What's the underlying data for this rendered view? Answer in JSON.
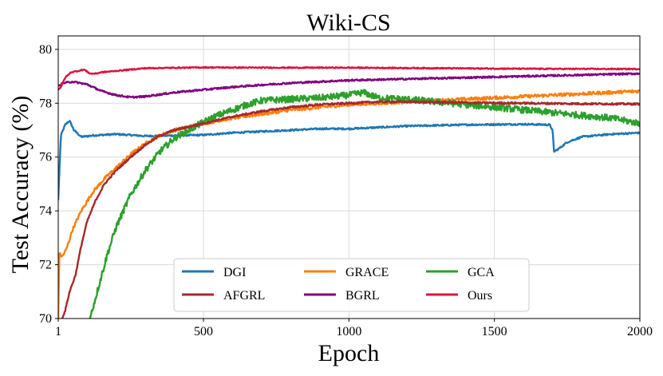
{
  "chart_data": {
    "type": "line",
    "title": "Wiki-CS",
    "xlabel": "Epoch",
    "ylabel": "Test Accuracy (%)",
    "xlim": [
      1,
      2000
    ],
    "ylim": [
      70,
      80.5
    ],
    "xticks": [
      1,
      500,
      1000,
      1500,
      2000
    ],
    "yticks": [
      70,
      72,
      74,
      76,
      78,
      80
    ],
    "grid": true,
    "legend": {
      "placement": "lower-center",
      "columns": 3
    },
    "series": [
      {
        "name": "DGI",
        "color": "#1f77b4",
        "noise": 0.03,
        "points": [
          [
            1,
            74.4
          ],
          [
            10,
            76.8
          ],
          [
            25,
            77.2
          ],
          [
            40,
            77.35
          ],
          [
            55,
            77.0
          ],
          [
            80,
            76.75
          ],
          [
            120,
            76.8
          ],
          [
            200,
            76.85
          ],
          [
            300,
            76.78
          ],
          [
            400,
            76.8
          ],
          [
            500,
            76.82
          ],
          [
            600,
            76.9
          ],
          [
            700,
            76.95
          ],
          [
            800,
            77.0
          ],
          [
            900,
            77.05
          ],
          [
            1000,
            77.05
          ],
          [
            1200,
            77.15
          ],
          [
            1400,
            77.2
          ],
          [
            1600,
            77.22
          ],
          [
            1690,
            77.2
          ],
          [
            1700,
            77.0
          ],
          [
            1705,
            76.2
          ],
          [
            1720,
            76.3
          ],
          [
            1750,
            76.55
          ],
          [
            1800,
            76.75
          ],
          [
            1900,
            76.85
          ],
          [
            2000,
            76.9
          ]
        ]
      },
      {
        "name": "GRACE",
        "color": "#ff7f0e",
        "noise": 0.06,
        "points": [
          [
            1,
            70.0
          ],
          [
            5,
            72.4
          ],
          [
            15,
            72.3
          ],
          [
            30,
            72.6
          ],
          [
            50,
            73.3
          ],
          [
            80,
            74.0
          ],
          [
            120,
            74.7
          ],
          [
            160,
            75.2
          ],
          [
            200,
            75.6
          ],
          [
            250,
            76.1
          ],
          [
            300,
            76.5
          ],
          [
            350,
            76.8
          ],
          [
            400,
            77.0
          ],
          [
            500,
            77.25
          ],
          [
            600,
            77.45
          ],
          [
            700,
            77.6
          ],
          [
            800,
            77.75
          ],
          [
            900,
            77.85
          ],
          [
            1000,
            77.95
          ],
          [
            1200,
            78.05
          ],
          [
            1400,
            78.15
          ],
          [
            1600,
            78.25
          ],
          [
            1800,
            78.35
          ],
          [
            2000,
            78.45
          ]
        ]
      },
      {
        "name": "GCA",
        "color": "#2ca02c",
        "noise": 0.12,
        "points": [
          [
            110,
            70.0
          ],
          [
            140,
            71.2
          ],
          [
            170,
            72.4
          ],
          [
            200,
            73.4
          ],
          [
            250,
            74.6
          ],
          [
            300,
            75.5
          ],
          [
            350,
            76.2
          ],
          [
            400,
            76.7
          ],
          [
            450,
            77.0
          ],
          [
            500,
            77.3
          ],
          [
            550,
            77.55
          ],
          [
            600,
            77.75
          ],
          [
            650,
            77.95
          ],
          [
            700,
            78.1
          ],
          [
            800,
            78.15
          ],
          [
            900,
            78.2
          ],
          [
            1000,
            78.3
          ],
          [
            1050,
            78.4
          ],
          [
            1100,
            78.2
          ],
          [
            1200,
            78.15
          ],
          [
            1300,
            78.05
          ],
          [
            1400,
            77.95
          ],
          [
            1500,
            77.85
          ],
          [
            1600,
            77.75
          ],
          [
            1700,
            77.65
          ],
          [
            1800,
            77.55
          ],
          [
            1900,
            77.45
          ],
          [
            2000,
            77.25
          ]
        ]
      },
      {
        "name": "AFGRL",
        "color": "#a52a2a",
        "noise": 0.035,
        "points": [
          [
            15,
            70.0
          ],
          [
            25,
            70.3
          ],
          [
            40,
            71.0
          ],
          [
            60,
            71.6
          ],
          [
            80,
            72.7
          ],
          [
            100,
            73.6
          ],
          [
            130,
            74.4
          ],
          [
            160,
            75.0
          ],
          [
            200,
            75.5
          ],
          [
            250,
            76.0
          ],
          [
            300,
            76.45
          ],
          [
            350,
            76.8
          ],
          [
            400,
            77.0
          ],
          [
            500,
            77.25
          ],
          [
            600,
            77.5
          ],
          [
            700,
            77.7
          ],
          [
            800,
            77.85
          ],
          [
            900,
            77.95
          ],
          [
            1000,
            78.0
          ],
          [
            1100,
            78.05
          ],
          [
            1200,
            78.05
          ],
          [
            1400,
            78.02
          ],
          [
            1600,
            78.0
          ],
          [
            1800,
            77.98
          ],
          [
            2000,
            77.97
          ]
        ]
      },
      {
        "name": "BGRL",
        "color": "#800080",
        "noise": 0.03,
        "points": [
          [
            1,
            78.65
          ],
          [
            20,
            78.75
          ],
          [
            50,
            78.8
          ],
          [
            100,
            78.7
          ],
          [
            150,
            78.45
          ],
          [
            200,
            78.3
          ],
          [
            250,
            78.22
          ],
          [
            300,
            78.25
          ],
          [
            400,
            78.4
          ],
          [
            500,
            78.5
          ],
          [
            600,
            78.6
          ],
          [
            700,
            78.68
          ],
          [
            800,
            78.75
          ],
          [
            900,
            78.8
          ],
          [
            1000,
            78.85
          ],
          [
            1200,
            78.9
          ],
          [
            1400,
            78.95
          ],
          [
            1600,
            79.0
          ],
          [
            1800,
            79.05
          ],
          [
            2000,
            79.1
          ]
        ]
      },
      {
        "name": "Ours",
        "color": "#dc143c",
        "noise": 0.02,
        "points": [
          [
            1,
            78.5
          ],
          [
            10,
            78.6
          ],
          [
            25,
            78.95
          ],
          [
            45,
            79.15
          ],
          [
            70,
            79.2
          ],
          [
            90,
            79.25
          ],
          [
            110,
            79.1
          ],
          [
            130,
            79.1
          ],
          [
            150,
            79.15
          ],
          [
            200,
            79.2
          ],
          [
            300,
            79.3
          ],
          [
            500,
            79.33
          ],
          [
            700,
            79.32
          ],
          [
            1000,
            79.32
          ],
          [
            1300,
            79.3
          ],
          [
            1600,
            79.28
          ],
          [
            2000,
            79.27
          ]
        ]
      }
    ]
  }
}
